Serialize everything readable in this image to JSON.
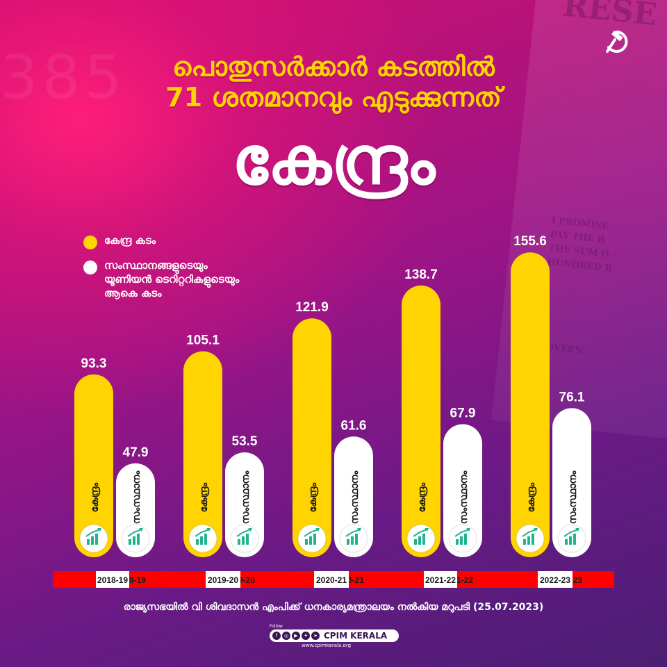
{
  "title": {
    "line1": "പൊതുസർക്കാർ കടത്തിൽ",
    "line2": "71 ശതമാനവും എടുക്കുന്നത്",
    "line3": "കേന്ദ്രം"
  },
  "legend": [
    {
      "label": "കേന്ദ്ര കടം",
      "color": "#ffd400"
    },
    {
      "label": "സംസ്ഥാനങ്ങളുടെയും\nയൂണിയൻ ടെറിറ്ററികളുടെയും\nആകെ കടം",
      "color": "#ffffff"
    }
  ],
  "background_text": {
    "number": "385",
    "note_lines": [
      "RESE",
      "I PROMISE",
      "PAY THE B",
      "THE SUM O",
      "HUNDRED R",
      "GOVERN"
    ]
  },
  "source_note": "രാജ്യസഭയിൽ വി ശിവദാസൻ എംപിക്ക് ധനകാര്യമന്ത്രാലയം നൽകിയ മറുപടി (25.07.2023)",
  "footer": {
    "follow": "Follow",
    "brand": "CPIM KERALA",
    "url": "www.cpimkerala.org"
  },
  "colors": {
    "accent": "#ffd400",
    "label_bar": "#ff0000",
    "icon_green": "#1fb48c"
  },
  "chart_data": {
    "type": "bar",
    "categories": [
      "2018-19",
      "2019-20",
      "2020-21",
      "2021-22",
      "2022-23"
    ],
    "series": [
      {
        "name": "കേന്ദ്ര കടം",
        "bar_label": "കേന്ദ്രം",
        "color": "#ffd400",
        "values": [
          93.3,
          105.1,
          121.9,
          138.7,
          155.6
        ]
      },
      {
        "name": "സംസ്ഥാനങ്ങളുടെയും യൂണിയൻ ടെറിറ്ററികളുടെയും ആകെ കടം",
        "bar_label": "സംസ്ഥാനം",
        "color": "#ffffff",
        "values": [
          47.9,
          53.5,
          61.6,
          67.9,
          76.1
        ]
      }
    ],
    "grid": false,
    "legend_position": "top-left"
  }
}
